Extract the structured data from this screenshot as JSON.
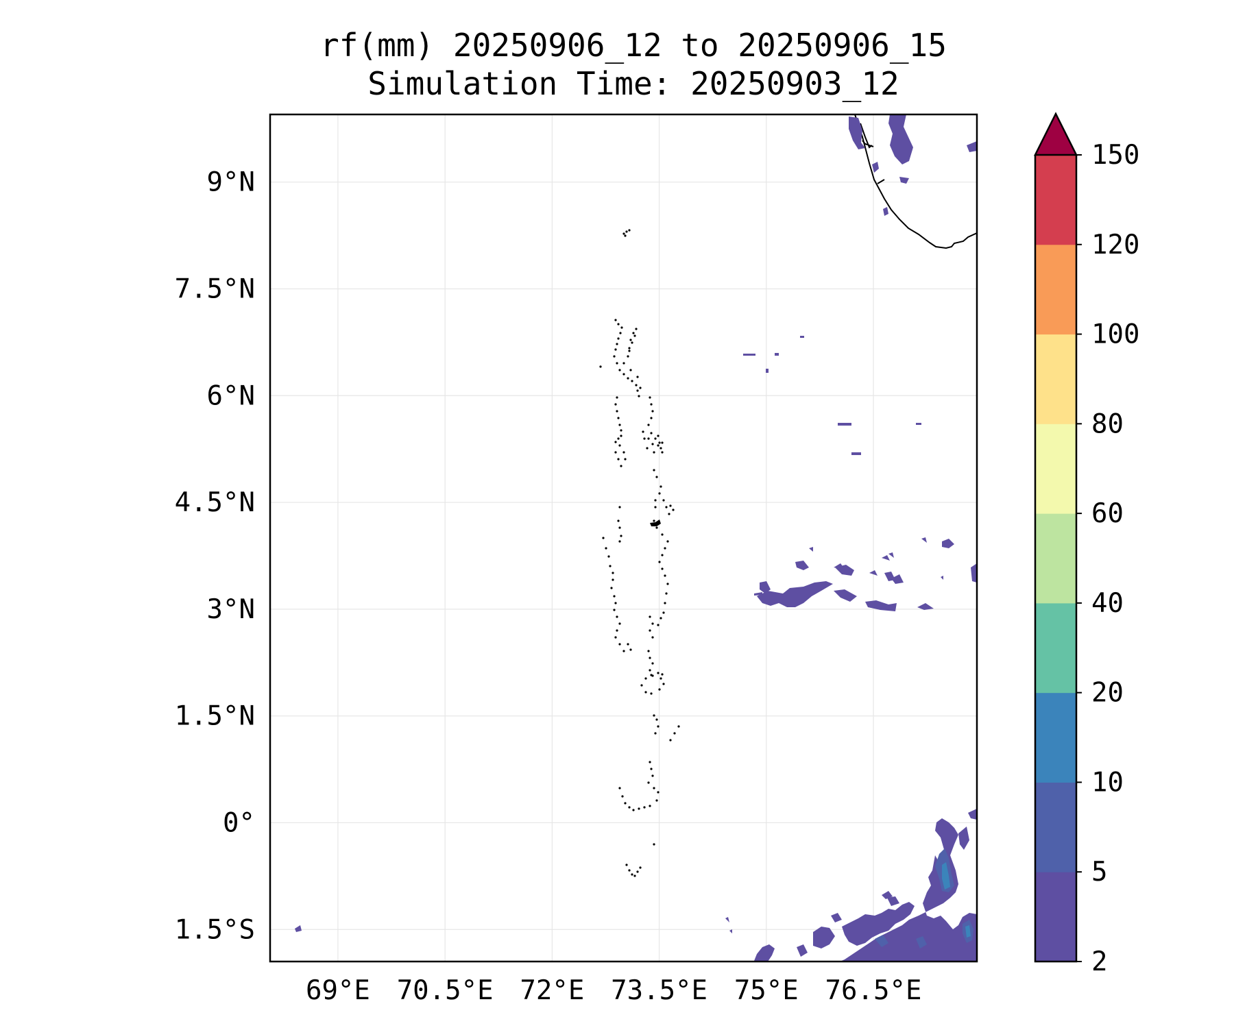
{
  "title": {
    "line1": "rf(mm) 20250906_12 to 20250906_15",
    "line2": "Simulation Time: 20250903_12"
  },
  "map": {
    "lon_ticks": [
      "69°E",
      "70.5°E",
      "72°E",
      "73.5°E",
      "75°E",
      "76.5°E"
    ],
    "lat_ticks": [
      "9°N",
      "7.5°N",
      "6°N",
      "4.5°N",
      "3°N",
      "1.5°N",
      "0°",
      "1.5°S"
    ],
    "lon_tick_values": [
      69,
      70.5,
      72,
      73.5,
      75,
      76.5
    ],
    "lat_tick_values": [
      9,
      7.5,
      6,
      4.5,
      3,
      1.5,
      0,
      -1.5
    ],
    "extent": {
      "lon": [
        68.05,
        77.95
      ],
      "lat": [
        -1.95,
        9.95
      ]
    },
    "gridlines": true
  },
  "colorbar": {
    "levels": [
      "2",
      "5",
      "10",
      "20",
      "40",
      "60",
      "80",
      "100",
      "120",
      "150"
    ],
    "colors": [
      "#5e4fa2",
      "#4f61aa",
      "#3b84bb",
      "#65c2a5",
      "#bde4a0",
      "#f3f9ad",
      "#fee18a",
      "#f99b57",
      "#d43e4f",
      "#9e0142"
    ],
    "extend": "max"
  },
  "colors": {
    "rain_light": "#5e4fa2",
    "rain_mid": "#4f61aa",
    "rain_heavy": "#3b84bb",
    "coast": "#000000",
    "grid": "#e6e6e6"
  }
}
